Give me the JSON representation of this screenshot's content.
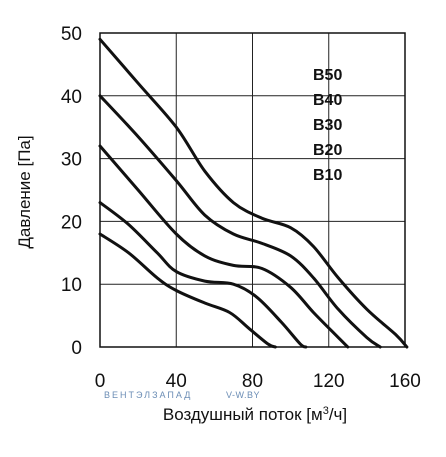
{
  "chart_data": {
    "type": "line",
    "title": "",
    "xlabel_pre": "Воздушный поток [м",
    "xlabel_sup": "3",
    "xlabel_post": "/ч]",
    "ylabel": "Давление [Па]",
    "xlim": [
      0,
      160
    ],
    "ylim": [
      0,
      50
    ],
    "xticks": [
      "0",
      "40",
      "80",
      "120",
      "160"
    ],
    "yticks": [
      "0",
      "10",
      "20",
      "30",
      "40",
      "50"
    ],
    "xtick_values": [
      0,
      40,
      80,
      120,
      160
    ],
    "ytick_values": [
      0,
      10,
      20,
      30,
      40,
      50
    ],
    "grid": true,
    "legend_position": "top-right",
    "series": [
      {
        "name": "B50",
        "points": [
          [
            0,
            49
          ],
          [
            20,
            42
          ],
          [
            40,
            35
          ],
          [
            55,
            28
          ],
          [
            70,
            23
          ],
          [
            85,
            20.5
          ],
          [
            100,
            19
          ],
          [
            112,
            16
          ],
          [
            125,
            11
          ],
          [
            140,
            6
          ],
          [
            155,
            2
          ],
          [
            161,
            0
          ]
        ]
      },
      {
        "name": "B40",
        "points": [
          [
            0,
            40
          ],
          [
            20,
            33.5
          ],
          [
            40,
            26.5
          ],
          [
            55,
            21
          ],
          [
            70,
            18
          ],
          [
            85,
            16.5
          ],
          [
            100,
            14.5
          ],
          [
            112,
            11
          ],
          [
            125,
            6
          ],
          [
            140,
            1.5
          ],
          [
            147,
            0
          ]
        ]
      },
      {
        "name": "B30",
        "points": [
          [
            0,
            32
          ],
          [
            20,
            25
          ],
          [
            40,
            18
          ],
          [
            55,
            14.5
          ],
          [
            70,
            13
          ],
          [
            85,
            12.5
          ],
          [
            100,
            9.5
          ],
          [
            112,
            5.5
          ],
          [
            125,
            1.5
          ],
          [
            130,
            0
          ]
        ]
      },
      {
        "name": "B20",
        "points": [
          [
            0,
            23
          ],
          [
            15,
            19.5
          ],
          [
            30,
            15
          ],
          [
            40,
            12
          ],
          [
            55,
            10.5
          ],
          [
            70,
            10
          ],
          [
            82,
            8
          ],
          [
            95,
            4
          ],
          [
            105,
            0.5
          ],
          [
            108,
            0
          ]
        ]
      },
      {
        "name": "B10",
        "points": [
          [
            0,
            18
          ],
          [
            15,
            15
          ],
          [
            30,
            11
          ],
          [
            40,
            9
          ],
          [
            55,
            7
          ],
          [
            68,
            5.5
          ],
          [
            78,
            3
          ],
          [
            88,
            0.5
          ],
          [
            92,
            0
          ]
        ]
      }
    ]
  },
  "watermark": {
    "left": "ВЕНТЭЛЗАПАД",
    "right": "V-W.BY"
  }
}
